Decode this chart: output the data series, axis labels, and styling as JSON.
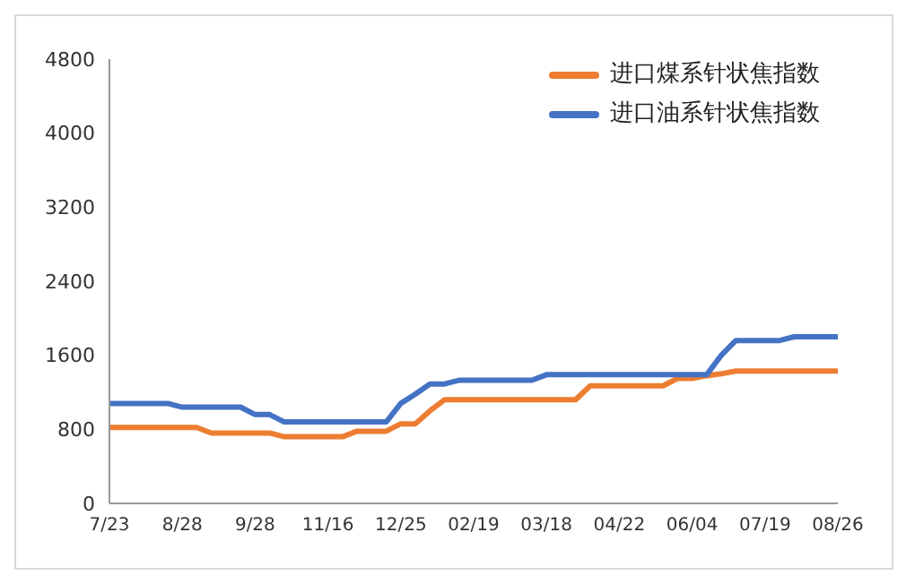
{
  "chart_data": {
    "type": "line",
    "categories": [
      "7/23",
      null,
      null,
      null,
      null,
      "8/28",
      null,
      null,
      null,
      null,
      "9/28",
      null,
      null,
      null,
      null,
      "11/16",
      null,
      null,
      null,
      null,
      "12/25",
      null,
      null,
      null,
      null,
      "02/19",
      null,
      null,
      null,
      null,
      "03/18",
      null,
      null,
      null,
      null,
      "04/22",
      null,
      null,
      null,
      null,
      "06/04",
      null,
      null,
      null,
      null,
      "07/19",
      null,
      null,
      null,
      null,
      "08/26"
    ],
    "series": [
      {
        "name": "进口煤系针状焦指数",
        "color": "#ed7d31",
        "values": [
          820,
          820,
          820,
          820,
          820,
          820,
          820,
          760,
          760,
          760,
          760,
          760,
          720,
          720,
          720,
          720,
          720,
          780,
          780,
          780,
          860,
          860,
          1000,
          1120,
          1120,
          1120,
          1120,
          1120,
          1120,
          1120,
          1120,
          1120,
          1120,
          1270,
          1270,
          1270,
          1270,
          1270,
          1270,
          1350,
          1350,
          1380,
          1400,
          1430,
          1430,
          1430,
          1430,
          1430,
          1430,
          1430,
          1430
        ]
      },
      {
        "name": "进口油系针状焦指数",
        "color": "#4472c4",
        "values": [
          1080,
          1080,
          1080,
          1080,
          1080,
          1040,
          1040,
          1040,
          1040,
          1040,
          960,
          960,
          880,
          880,
          880,
          880,
          880,
          880,
          880,
          880,
          1080,
          1180,
          1290,
          1290,
          1330,
          1330,
          1330,
          1330,
          1330,
          1330,
          1390,
          1390,
          1390,
          1390,
          1390,
          1390,
          1390,
          1390,
          1390,
          1390,
          1390,
          1390,
          1600,
          1760,
          1760,
          1760,
          1760,
          1800,
          1800,
          1800,
          1800
        ]
      }
    ],
    "ylim": [
      0,
      4800
    ],
    "yticks": [
      0,
      800,
      1600,
      2400,
      3200,
      4000,
      4800
    ],
    "grid": false,
    "legend": "top right",
    "marker": "none",
    "line_style": "solid"
  }
}
